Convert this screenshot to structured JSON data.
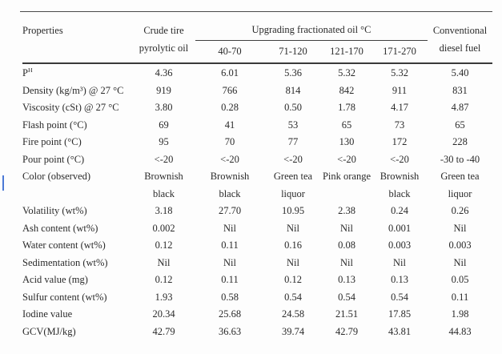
{
  "artifacts": {
    "cursor_color": "#4b79d6"
  },
  "rule_color": "#3f3f3f",
  "table": {
    "header": {
      "properties": "Properties",
      "crude_line1": "Crude tire",
      "crude_line2": "pyrolytic oil",
      "group": "Upgrading fractionated oil °C",
      "subcols": [
        "40-70",
        "71-120",
        "121-170",
        "171-270"
      ],
      "diesel_line1": "Conventional",
      "diesel_line2": "diesel fuel"
    },
    "rows": [
      {
        "property": "P^H",
        "values": [
          "4.36",
          "6.01",
          "5.36",
          "5.32",
          "5.32",
          "5.40"
        ]
      },
      {
        "property": "Density (kg/m³) @ 27 °C",
        "values": [
          "919",
          "766",
          "814",
          "842",
          "911",
          "831"
        ]
      },
      {
        "property": "Viscosity (cSt) @ 27 °C",
        "values": [
          "3.80",
          "0.28",
          "0.50",
          "1.78",
          "4.17",
          "4.87"
        ]
      },
      {
        "property": "Flash point (°C)",
        "values": [
          "69",
          "41",
          "53",
          "65",
          "73",
          "65"
        ]
      },
      {
        "property": "Fire point (°C)",
        "values": [
          "95",
          "70",
          "77",
          "130",
          "172",
          "228"
        ]
      },
      {
        "property": "Pour point (°C)",
        "values": [
          "<-20",
          "<-20",
          "<-20",
          "<-20",
          "<-20",
          "-30 to -40"
        ]
      },
      {
        "property": "Color (observed)",
        "values": [
          "Brownish\nblack",
          "Brownish\nblack",
          "Green tea\nliquor",
          "Pink orange",
          "Brownish\nblack",
          "Green tea liquor"
        ]
      },
      {
        "property": "Volatility (wt%)",
        "values": [
          "3.18",
          "27.70",
          "10.95",
          "2.38",
          "0.24",
          "0.26"
        ]
      },
      {
        "property": "Ash content (wt%)",
        "values": [
          "0.002",
          "Nil",
          "Nil",
          "Nil",
          "0.001",
          "Nil"
        ]
      },
      {
        "property": "Water content (wt%)",
        "values": [
          "0.12",
          "0.11",
          "0.16",
          "0.08",
          "0.003",
          "0.003"
        ]
      },
      {
        "property": "Sedimentation (wt%)",
        "values": [
          "Nil",
          "Nil",
          "Nil",
          "Nil",
          "Nil",
          "Nil"
        ]
      },
      {
        "property": "Acid value (mg)",
        "values": [
          "0.12",
          "0.11",
          "0.12",
          "0.13",
          "0.13",
          "0.05"
        ]
      },
      {
        "property": "Sulfur content (wt%)",
        "values": [
          "1.93",
          "0.58",
          "0.54",
          "0.54",
          "0.54",
          "0.11"
        ]
      },
      {
        "property": "Iodine value",
        "values": [
          "20.34",
          "25.68",
          "24.58",
          "21.51",
          "17.85",
          "1.98"
        ]
      },
      {
        "property": "GCV(MJ/kg)",
        "values": [
          "42.79",
          "36.63",
          "39.74",
          "42.79",
          "43.81",
          "44.83"
        ]
      }
    ]
  }
}
